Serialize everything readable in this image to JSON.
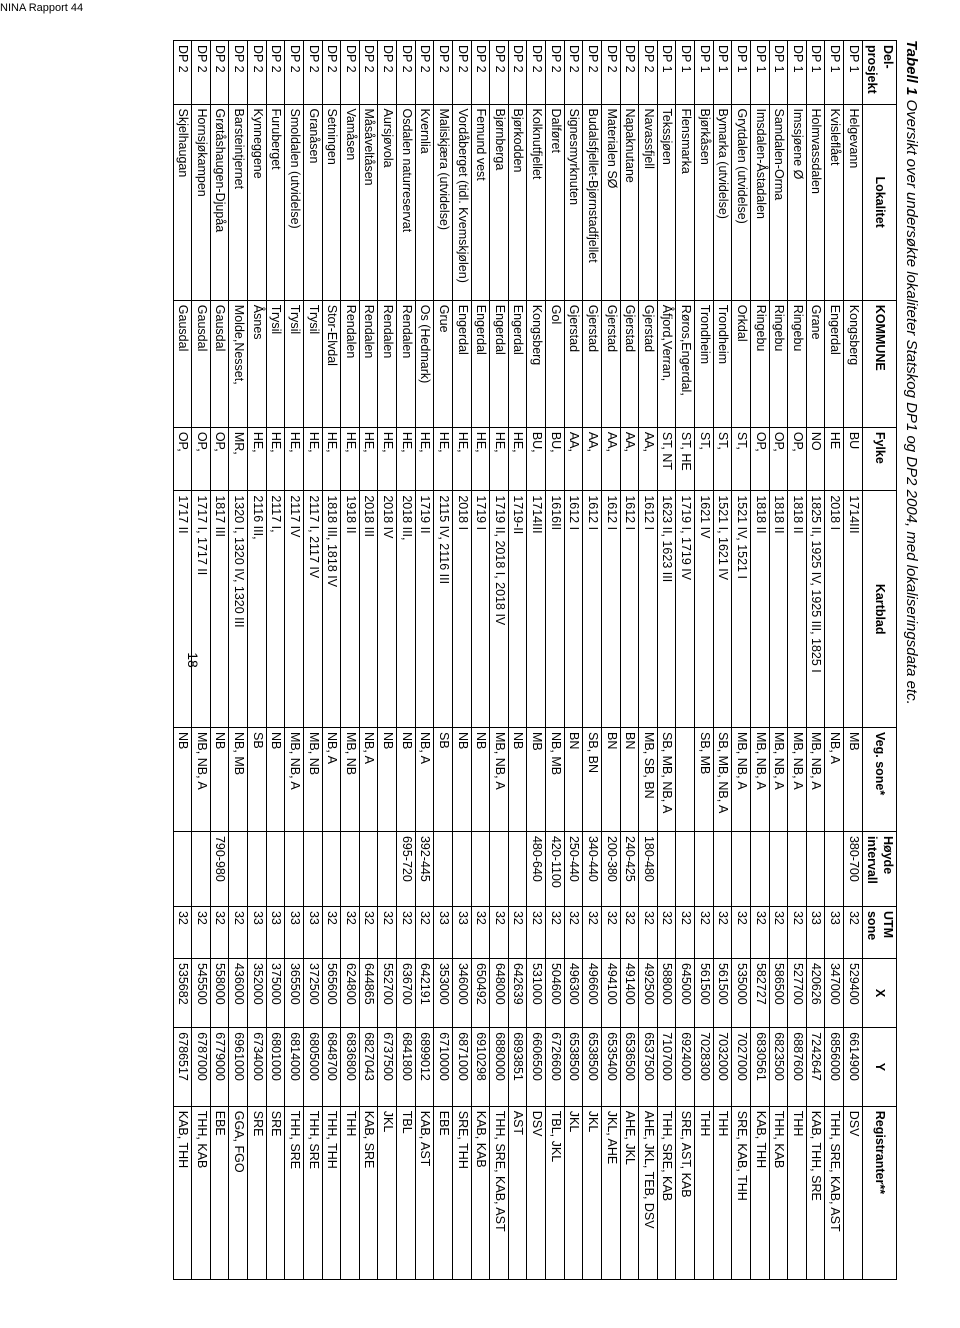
{
  "report_id": "NINA Rapport 44",
  "title_bold": "Tabell 1",
  "title_rest": " Oversikt over undersøkte lokaliteter Statskog DP1 og DP2 2004, med lokaliseringsdata etc.",
  "page_number": "18",
  "columns": [
    "Del-prosjekt",
    "Lokalitet",
    "KOMMUNE",
    "Fylke",
    "Kartblad",
    "Veg. sone*",
    "Høyde intervall",
    "UTM sone",
    "X",
    "Y",
    "Registranter**"
  ],
  "rows": [
    [
      "DP 1",
      "Helgevann",
      "Kongsberg",
      "BU",
      "1714III",
      "MB",
      "380-700",
      "32",
      "529400",
      "6614900",
      "DSV"
    ],
    [
      "DP 1",
      "Kvisleflået",
      "Engerdal",
      "HE",
      "2018 I",
      "NB, A",
      "",
      "33",
      "347000",
      "6856000",
      "THH, SRE, KAB, AST"
    ],
    [
      "DP 1",
      "Holmvassdalen",
      "Grane",
      "NO",
      "1825 II, 1925 IV, 1925 III, 1825 I",
      "MB, NB, A",
      "",
      "33",
      "420626",
      "7242647",
      "KAB, THH, SRE"
    ],
    [
      "DP 1",
      "Imssjøene Ø",
      "Ringebu",
      "OP,",
      "1818 II",
      "MB, NB, A",
      "",
      "32",
      "527700",
      "6887600",
      "THH"
    ],
    [
      "DP 1",
      "Samdalen-Orma",
      "Ringebu",
      "OP,",
      "1818 II",
      "MB, NB, A",
      "",
      "32",
      "586500",
      "6823500",
      "THH, KAB"
    ],
    [
      "DP 1",
      "Imsdalen-Åstadalen",
      "Ringebu",
      "OP,",
      "1818 II",
      "MB, NB, A",
      "",
      "32",
      "582727",
      "6830561",
      "KAB, THH"
    ],
    [
      "DP 1",
      "Grytdalen (utvidelse)",
      "Orkdal",
      "ST,",
      "1521 IV, 1521 I",
      "MB, NB, A",
      "",
      "32",
      "535000",
      "7027000",
      "SRE, KAB, THH"
    ],
    [
      "DP 1",
      "Bymarka (utvidelse)",
      "Trondheim",
      "ST,",
      "1521 I, 1621 IV",
      "SB, MB, NB, A",
      "",
      "32",
      "561500",
      "7032000",
      "THH"
    ],
    [
      "DP 1",
      "Bjørkåsen",
      "Trondheim",
      "ST,",
      "1621 IV",
      "SB, MB",
      "",
      "32",
      "561500",
      "7028300",
      "THH"
    ],
    [
      "DP 1",
      "Flensmarka",
      "Røros,Engerdal,",
      "ST, HE",
      "1719 I, 1719 IV",
      "",
      "",
      "32",
      "645000",
      "6924000",
      "SRE, AST, KAB"
    ],
    [
      "DP 1",
      "Tekssjøen",
      "Åfjord,Verran,",
      "ST, NT",
      "1623 II, 1623 III",
      "SB, MB, NB, A",
      "",
      "32",
      "588000",
      "7107000",
      "THH, SRE, KAB"
    ],
    [
      "DP 2",
      "Navassfjell",
      "Gjerstad",
      "AA,",
      "1612 I",
      "MB, SB, BN",
      "180-480",
      "32",
      "492500",
      "6537500",
      "AHE, JKL, TEB, DSV"
    ],
    [
      "DP 2",
      "Napaknutane",
      "Gjerstad",
      "AA,",
      "1612 I",
      "BN",
      "240-425",
      "32",
      "491400",
      "6536500",
      "AHE, JKL"
    ],
    [
      "DP 2",
      "Materialen SØ",
      "Gjerstad",
      "AA,",
      "1612 I",
      "BN",
      "200-380",
      "32",
      "494100",
      "6535400",
      "JKL, AHE"
    ],
    [
      "DP 2",
      "Budalsfjellet-Bjørnstadfjellet",
      "Gjerstad",
      "AA,",
      "1612 I",
      "SB, BN",
      "340-440",
      "32",
      "496600",
      "6538500",
      "JKL"
    ],
    [
      "DP 2",
      "Signesmyrknuten",
      "Gjerstad",
      "AA,",
      "1612 I",
      "BN",
      "250-440",
      "32",
      "496300",
      "6538500",
      "JKL"
    ],
    [
      "DP 2",
      "Dalføret",
      "Gol",
      "BU,",
      "1616II",
      "NB, MB",
      "420-1100",
      "32",
      "504600",
      "6726600",
      "TBL, JKL"
    ],
    [
      "DP 2",
      "Kolknutfjellet",
      "Kongsberg",
      "BU,",
      "1714III",
      "MB",
      "480-640",
      "32",
      "531000",
      "6606500",
      "DSV"
    ],
    [
      "DP 2",
      "Bjørkodden",
      "Engerdal",
      "HE,",
      "1719-II",
      "NB",
      "",
      "32",
      "642639",
      "6893851",
      "AST"
    ],
    [
      "DP 2",
      "Bjørnberga",
      "Engerdal",
      "HE,",
      "1719 II, 2018 I, 2018 IV",
      "MB, NB, A",
      "",
      "32",
      "648000",
      "6880000",
      "THH, SRE, KAB, AST"
    ],
    [
      "DP 2",
      "Femund vest",
      "Engerdal",
      "HE,",
      "1719 I",
      "NB",
      "",
      "32",
      "650492",
      "6910298",
      "KAB, KAB"
    ],
    [
      "DP 2",
      "Vordåberget (tidl. Kvemskjølen)",
      "Engerdal",
      "HE,",
      "2018 I",
      "NB",
      "",
      "33",
      "346000",
      "6871000",
      "SRE, THH"
    ],
    [
      "DP 2",
      "Maliskjæra (utvidelse)",
      "Grue",
      "HE,",
      "2115 IV, 2116 III",
      "SB",
      "",
      "33",
      "353000",
      "6710000",
      "EBE"
    ],
    [
      "DP 2",
      "Kvernlia",
      "Os (Hedmark)",
      "HE,",
      "1719 II",
      "NB, A",
      "392-445",
      "32",
      "642191",
      "6899012",
      "KAB, AST"
    ],
    [
      "DP 2",
      "Osdalen naturreservat",
      "Rendalen",
      "HE,",
      "2018 III,",
      "NB",
      "695-720",
      "32",
      "636700",
      "6841800",
      "TBL"
    ],
    [
      "DP 2",
      "Aursjøvola",
      "Rendalen",
      "HE,",
      "2018 IV",
      "NB",
      "",
      "32",
      "552700",
      "6737500",
      "JKL"
    ],
    [
      "DP 2",
      "Måsåveltåsen",
      "Rendalen",
      "HE,",
      "2018 III",
      "NB, A",
      "",
      "32",
      "644865",
      "6827043",
      "KAB, SRE"
    ],
    [
      "DP 2",
      "Vamåsen",
      "Rendalen",
      "HE,",
      "1918 II",
      "MB, NB",
      "",
      "32",
      "624800",
      "6836800",
      "THH"
    ],
    [
      "DP 2",
      "Setningen",
      "Stor-Elvdal",
      "HE,",
      "1818 III, 1818 IV",
      "NB, A",
      "",
      "32",
      "565600",
      "6848700",
      "THH, THH"
    ],
    [
      "DP 2",
      "Granåsen",
      "Trysil",
      "HE,",
      "2117 I, 2117 IV",
      "MB, NB",
      "",
      "33",
      "372500",
      "6805000",
      "THH, SRE"
    ],
    [
      "DP 2",
      "Smoldalen (utvidelse)",
      "Trysil",
      "HE,",
      "2117 IV",
      "MB, NB, A",
      "",
      "33",
      "365500",
      "6814000",
      "THH, SRE"
    ],
    [
      "DP 2",
      "Furuberget",
      "Trysil",
      "HE,",
      "2117 I,",
      "NB",
      "",
      "33",
      "375000",
      "6801000",
      "SRE"
    ],
    [
      "DP 2",
      "Kynneggene",
      "Åsnes",
      "HE,",
      "2116 III,",
      "SB",
      "",
      "33",
      "352000",
      "6734000",
      "SRE"
    ],
    [
      "DP 2",
      "Barsteintjernet",
      "Molde,Nesset,",
      "MR,",
      "1320 I, 1320 IV, 1320 III",
      "NB, MB",
      "",
      "32",
      "436000",
      "6961000",
      "GGA, FGO"
    ],
    [
      "DP 2",
      "Grøtåshaugen-Djupåa",
      "Gausdal",
      "OP,",
      "1817 III",
      "NB",
      "790-980",
      "32",
      "558000",
      "6779000",
      "EBE"
    ],
    [
      "DP 2",
      "Hornsjøkampen",
      "Gausdal",
      "OP,",
      "1717 I, 1717 II",
      "MB, NB, A",
      "",
      "32",
      "545500",
      "6787000",
      "THH, KAB"
    ],
    [
      "DP 2",
      "Skjelhaugan",
      "Gausdal",
      "OP,",
      "1717 II",
      "NB",
      "",
      "32",
      "535682",
      "6786517",
      "KAB, THH"
    ]
  ]
}
